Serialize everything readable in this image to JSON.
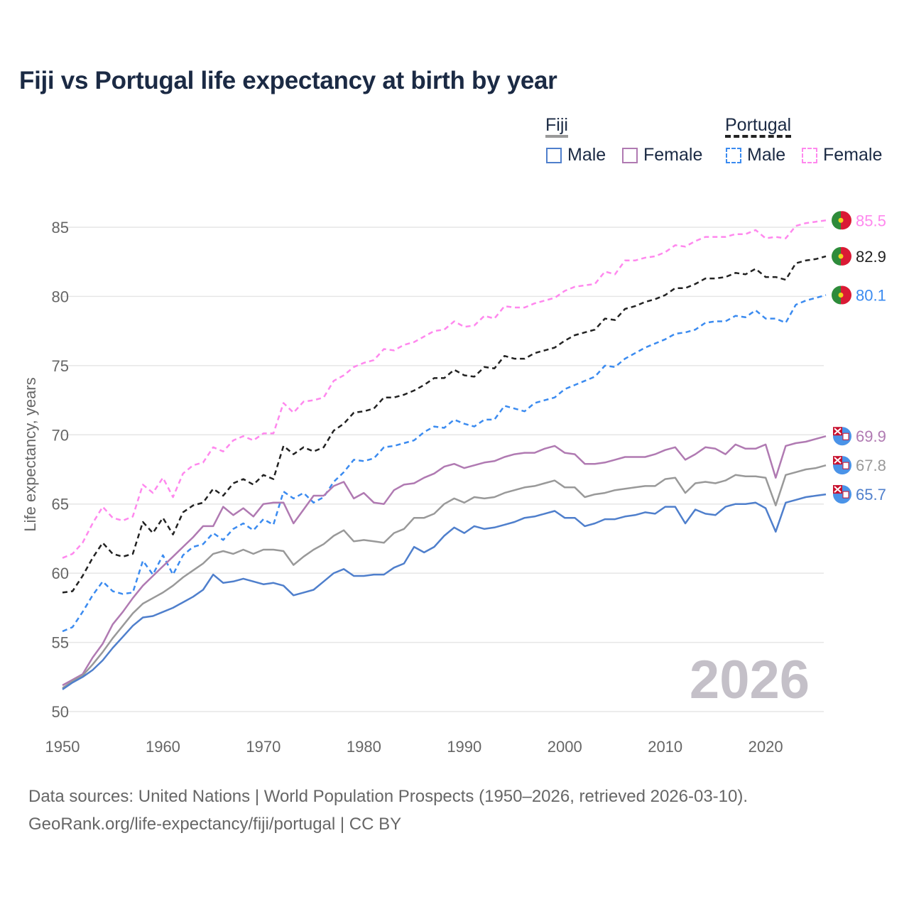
{
  "title": "Fiji vs Portugal life expectancy at birth by year",
  "legend": {
    "groups": [
      {
        "label": "Fiji",
        "items": [
          "Male",
          "Female"
        ]
      },
      {
        "label": "Portugal",
        "items": [
          "Male",
          "Female"
        ]
      }
    ]
  },
  "watermark_year": "2026",
  "source_lines": [
    "Data sources: United Nations | World Population Prospects (1950–2026, retrieved 2026-03-10).",
    "GeoRank.org/life-expectancy/fiji/portugal | CC BY"
  ],
  "colors": {
    "fiji_male": "#4f7fcc",
    "fiji_female": "#b07ab2",
    "fiji_total": "#999999",
    "portugal_male": "#3b8bf0",
    "portugal_female": "#ff88ee",
    "portugal_total": "#222222"
  },
  "chart_data": {
    "type": "line",
    "title": "Fiji vs Portugal life expectancy at birth by year",
    "xlabel": "",
    "ylabel": "Life expectancy, years",
    "xlim": [
      1950,
      2026
    ],
    "ylim": [
      50,
      85
    ],
    "x_ticks": [
      1950,
      1960,
      1970,
      1980,
      1990,
      2000,
      2010,
      2020
    ],
    "y_ticks": [
      50,
      55,
      60,
      65,
      70,
      75,
      80,
      85
    ],
    "grid": true,
    "legend_position": "top-right",
    "x_start": 1950,
    "series": [
      {
        "name": "Portugal Female",
        "key": "portugal_female",
        "dashed": true,
        "flag": "portugal",
        "end_label": "85.5",
        "values": [
          61.1,
          61.4,
          62.2,
          63.6,
          64.8,
          64.0,
          63.8,
          64.1,
          66.4,
          65.8,
          66.9,
          65.5,
          67.2,
          67.8,
          68.0,
          69.1,
          68.8,
          69.6,
          69.9,
          69.6,
          70.1,
          70.1,
          72.3,
          71.6,
          72.4,
          72.5,
          72.7,
          73.9,
          74.3,
          74.9,
          75.2,
          75.4,
          76.2,
          76.1,
          76.5,
          76.7,
          77.1,
          77.5,
          77.6,
          78.2,
          77.8,
          77.9,
          78.6,
          78.4,
          79.3,
          79.2,
          79.2,
          79.5,
          79.7,
          79.9,
          80.4,
          80.7,
          80.8,
          80.9,
          81.8,
          81.6,
          82.6,
          82.6,
          82.8,
          82.9,
          83.2,
          83.7,
          83.6,
          84.0,
          84.3,
          84.3,
          84.3,
          84.5,
          84.5,
          84.8,
          84.2,
          84.3,
          84.2,
          85.1,
          85.3,
          85.4,
          85.5
        ]
      },
      {
        "name": "Portugal",
        "key": "portugal_total",
        "dashed": true,
        "flag": "portugal",
        "end_label": "82.9",
        "values": [
          58.6,
          58.7,
          59.8,
          61.1,
          62.2,
          61.4,
          61.2,
          61.4,
          63.7,
          62.9,
          64.0,
          62.8,
          64.4,
          64.9,
          65.1,
          66.1,
          65.6,
          66.5,
          66.8,
          66.4,
          67.1,
          66.8,
          69.2,
          68.6,
          69.1,
          68.8,
          69.1,
          70.3,
          70.8,
          71.6,
          71.7,
          71.9,
          72.7,
          72.7,
          72.9,
          73.2,
          73.6,
          74.1,
          74.1,
          74.7,
          74.3,
          74.2,
          74.9,
          74.8,
          75.7,
          75.5,
          75.5,
          75.9,
          76.1,
          76.3,
          76.8,
          77.2,
          77.4,
          77.6,
          78.4,
          78.3,
          79.1,
          79.3,
          79.6,
          79.8,
          80.1,
          80.6,
          80.6,
          80.9,
          81.3,
          81.3,
          81.4,
          81.7,
          81.6,
          82.0,
          81.4,
          81.4,
          81.2,
          82.4,
          82.6,
          82.7,
          82.9
        ]
      },
      {
        "name": "Portugal Male",
        "key": "portugal_male",
        "dashed": true,
        "flag": "portugal",
        "end_label": "80.1",
        "values": [
          55.8,
          56.1,
          57.2,
          58.4,
          59.4,
          58.7,
          58.5,
          58.6,
          60.9,
          59.9,
          61.3,
          59.9,
          61.3,
          61.9,
          62.1,
          62.9,
          62.4,
          63.2,
          63.6,
          63.1,
          63.9,
          63.5,
          65.9,
          65.4,
          65.8,
          65.1,
          65.5,
          66.6,
          67.3,
          68.2,
          68.1,
          68.3,
          69.1,
          69.2,
          69.4,
          69.6,
          70.2,
          70.6,
          70.5,
          71.1,
          70.8,
          70.6,
          71.1,
          71.1,
          72.1,
          71.9,
          71.7,
          72.3,
          72.5,
          72.7,
          73.3,
          73.6,
          73.9,
          74.2,
          75.0,
          74.9,
          75.5,
          75.9,
          76.3,
          76.6,
          76.9,
          77.3,
          77.4,
          77.6,
          78.1,
          78.2,
          78.2,
          78.6,
          78.5,
          79.0,
          78.4,
          78.4,
          78.1,
          79.4,
          79.7,
          79.9,
          80.1
        ]
      },
      {
        "name": "Fiji Female",
        "key": "fiji_female",
        "dashed": false,
        "flag": "fiji",
        "end_label": "69.9",
        "values": [
          51.9,
          52.3,
          52.7,
          53.9,
          54.9,
          56.3,
          57.2,
          58.2,
          59.1,
          59.8,
          60.5,
          61.2,
          61.9,
          62.6,
          63.4,
          63.4,
          64.8,
          64.2,
          64.7,
          64.1,
          65.0,
          65.1,
          65.1,
          63.6,
          64.6,
          65.6,
          65.6,
          66.3,
          66.6,
          65.4,
          65.8,
          65.1,
          65.0,
          66.0,
          66.4,
          66.5,
          66.9,
          67.2,
          67.7,
          67.9,
          67.6,
          67.8,
          68.0,
          68.1,
          68.4,
          68.6,
          68.7,
          68.7,
          69.0,
          69.2,
          68.7,
          68.6,
          67.9,
          67.9,
          68.0,
          68.2,
          68.4,
          68.4,
          68.4,
          68.6,
          68.9,
          69.1,
          68.2,
          68.6,
          69.1,
          69.0,
          68.6,
          69.3,
          69.0,
          69.0,
          69.3,
          66.9,
          69.2,
          69.4,
          69.5,
          69.7,
          69.9
        ]
      },
      {
        "name": "Fiji",
        "key": "fiji_total",
        "dashed": false,
        "flag": "fiji",
        "end_label": "67.8",
        "values": [
          51.7,
          52.2,
          52.6,
          53.4,
          54.3,
          55.3,
          56.2,
          57.1,
          57.8,
          58.2,
          58.6,
          59.1,
          59.7,
          60.2,
          60.7,
          61.4,
          61.6,
          61.4,
          61.7,
          61.4,
          61.7,
          61.7,
          61.6,
          60.6,
          61.2,
          61.7,
          62.1,
          62.7,
          63.1,
          62.3,
          62.4,
          62.3,
          62.2,
          62.9,
          63.2,
          64.0,
          64.0,
          64.3,
          65.0,
          65.4,
          65.1,
          65.5,
          65.4,
          65.5,
          65.8,
          66.0,
          66.2,
          66.3,
          66.5,
          66.7,
          66.2,
          66.2,
          65.5,
          65.7,
          65.8,
          66.0,
          66.1,
          66.2,
          66.3,
          66.3,
          66.8,
          66.9,
          65.8,
          66.5,
          66.6,
          66.5,
          66.7,
          67.1,
          67.0,
          67.0,
          66.9,
          64.9,
          67.1,
          67.3,
          67.5,
          67.6,
          67.8
        ]
      },
      {
        "name": "Fiji Male",
        "key": "fiji_male",
        "dashed": false,
        "flag": "fiji",
        "end_label": "65.7",
        "values": [
          51.6,
          52.1,
          52.5,
          53.0,
          53.7,
          54.6,
          55.4,
          56.2,
          56.8,
          56.9,
          57.2,
          57.5,
          57.9,
          58.3,
          58.8,
          59.9,
          59.3,
          59.4,
          59.6,
          59.4,
          59.2,
          59.3,
          59.1,
          58.4,
          58.6,
          58.8,
          59.4,
          60.0,
          60.3,
          59.8,
          59.8,
          59.9,
          59.9,
          60.4,
          60.7,
          61.9,
          61.5,
          61.9,
          62.7,
          63.3,
          62.9,
          63.4,
          63.2,
          63.3,
          63.5,
          63.7,
          64.0,
          64.1,
          64.3,
          64.5,
          64.0,
          64.0,
          63.4,
          63.6,
          63.9,
          63.9,
          64.1,
          64.2,
          64.4,
          64.3,
          64.8,
          64.8,
          63.6,
          64.6,
          64.3,
          64.2,
          64.8,
          65.0,
          65.0,
          65.1,
          64.7,
          63.0,
          65.1,
          65.3,
          65.5,
          65.6,
          65.7
        ]
      }
    ]
  }
}
